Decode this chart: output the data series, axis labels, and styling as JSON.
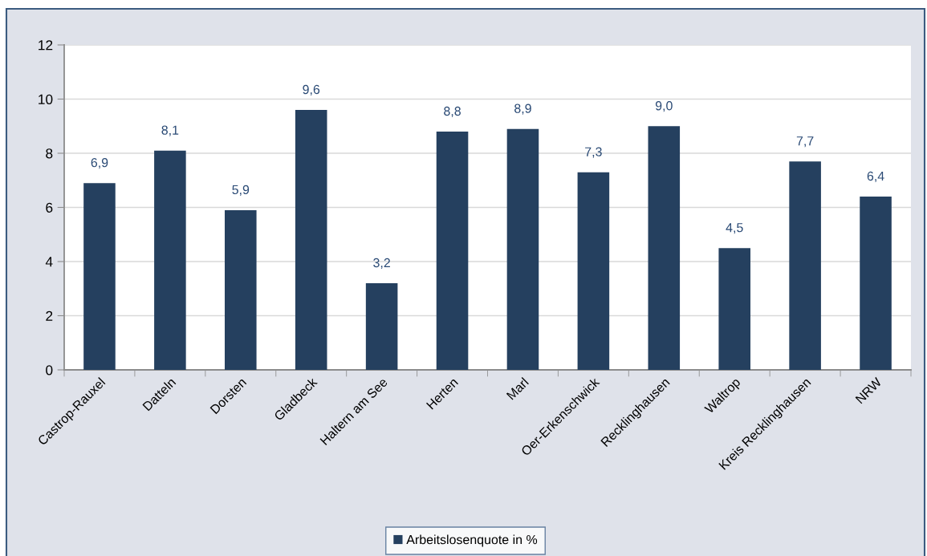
{
  "chart_data": {
    "type": "bar",
    "categories": [
      "Castrop-Rauxel",
      "Datteln",
      "Dorsten",
      "Gladbeck",
      "Haltern am See",
      "Herten",
      "Marl",
      "Oer-Erkenschwick",
      "Recklinghausen",
      "Waltrop",
      "Kreis Recklinghausen",
      "NRW"
    ],
    "series": [
      {
        "name": "Arbeitslosenquote in %",
        "color": "#25405f",
        "values": [
          6.9,
          8.1,
          5.9,
          9.6,
          3.2,
          8.8,
          8.9,
          7.3,
          9.0,
          4.5,
          7.7,
          6.4
        ],
        "value_labels": [
          "6,9",
          "8,1",
          "5,9",
          "9,6",
          "3,2",
          "8,8",
          "8,9",
          "7,3",
          "9,0",
          "4,5",
          "7,7",
          "6,4"
        ]
      }
    ],
    "ylim": [
      0,
      12
    ],
    "yticks": [
      0,
      2,
      4,
      6,
      8,
      10,
      12
    ],
    "grid": "y",
    "legend": "bottom"
  }
}
